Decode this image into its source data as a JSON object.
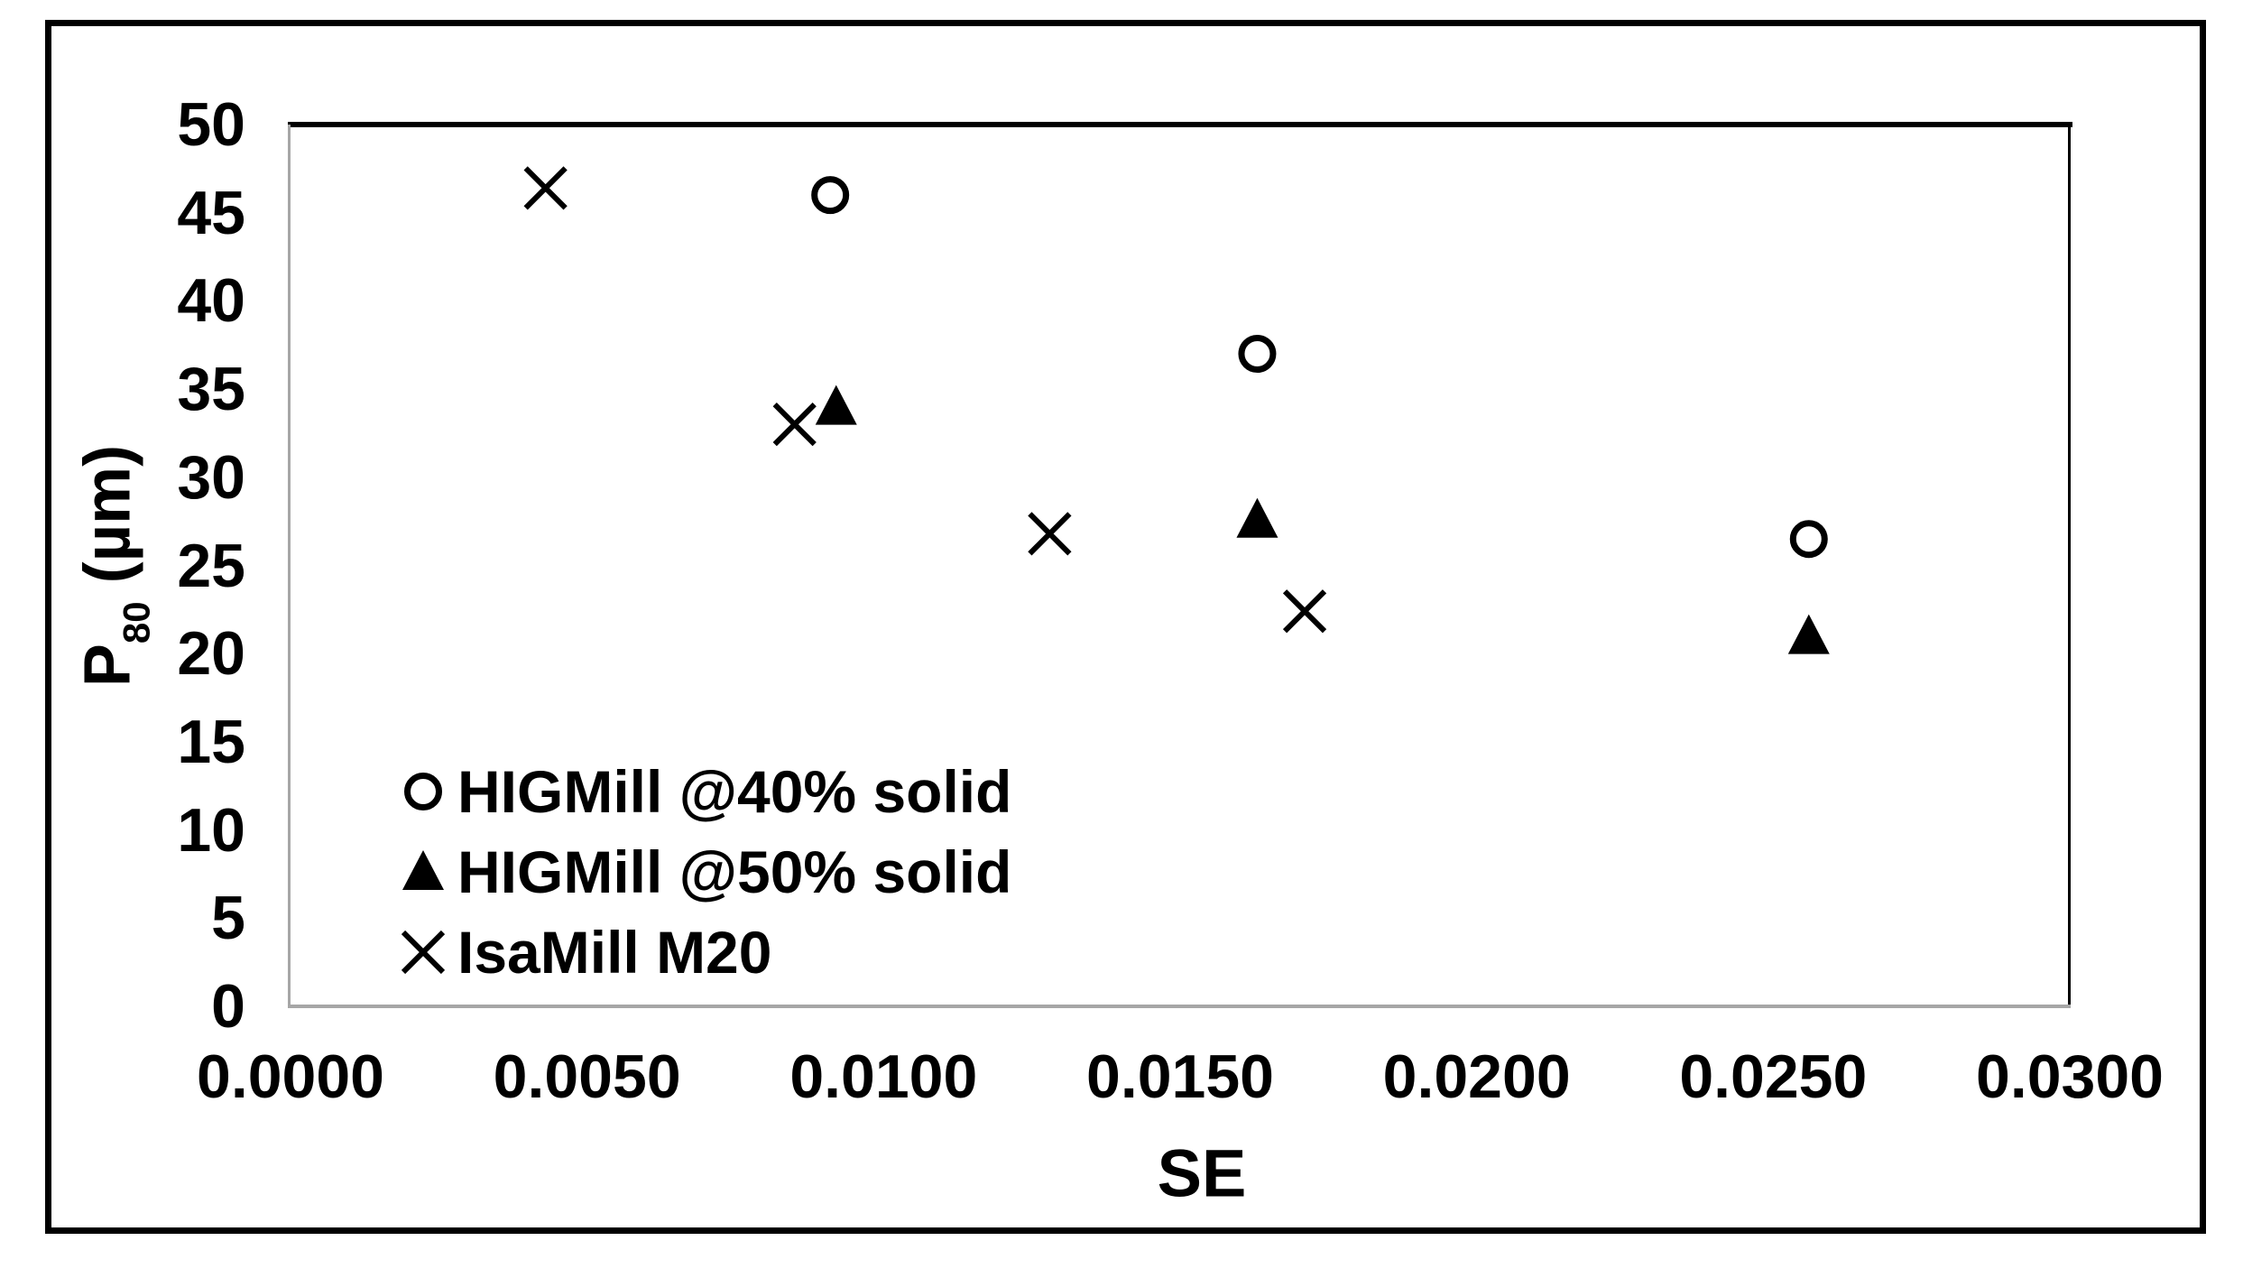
{
  "figure": {
    "background": "#ffffff",
    "frame_color": "#000000",
    "marker_color": "#000000",
    "axis_gray": "#a6a6a6"
  },
  "chart_data": {
    "type": "scatter",
    "title": "",
    "xlabel": "SE",
    "ylabel": "P80 (µm)",
    "ylabel_parts": {
      "base": "P",
      "sub": "80",
      "unit": " (µm)"
    },
    "xlim": [
      0.0,
      0.03
    ],
    "ylim": [
      0,
      50
    ],
    "xticks": [
      "0.0000",
      "0.0050",
      "0.0100",
      "0.0150",
      "0.0200",
      "0.0250",
      "0.0300"
    ],
    "yticks": [
      "0",
      "5",
      "10",
      "15",
      "20",
      "25",
      "30",
      "35",
      "40",
      "45",
      "50"
    ],
    "grid": false,
    "legend_position": "inside-lower-left",
    "series": [
      {
        "name": "HIGMill @40% solid",
        "marker": "circle-open",
        "points": [
          [
            0.0091,
            46.0
          ],
          [
            0.0163,
            37.0
          ],
          [
            0.0256,
            26.5
          ]
        ]
      },
      {
        "name": "HIGMill @50% solid",
        "marker": "triangle-filled",
        "points": [
          [
            0.0092,
            34.0
          ],
          [
            0.0163,
            27.6
          ],
          [
            0.0256,
            21.0
          ]
        ]
      },
      {
        "name": "IsaMill M20",
        "marker": "x",
        "points": [
          [
            0.0043,
            46.4
          ],
          [
            0.0085,
            33.0
          ],
          [
            0.0128,
            26.8
          ],
          [
            0.0171,
            22.4
          ]
        ]
      }
    ]
  }
}
